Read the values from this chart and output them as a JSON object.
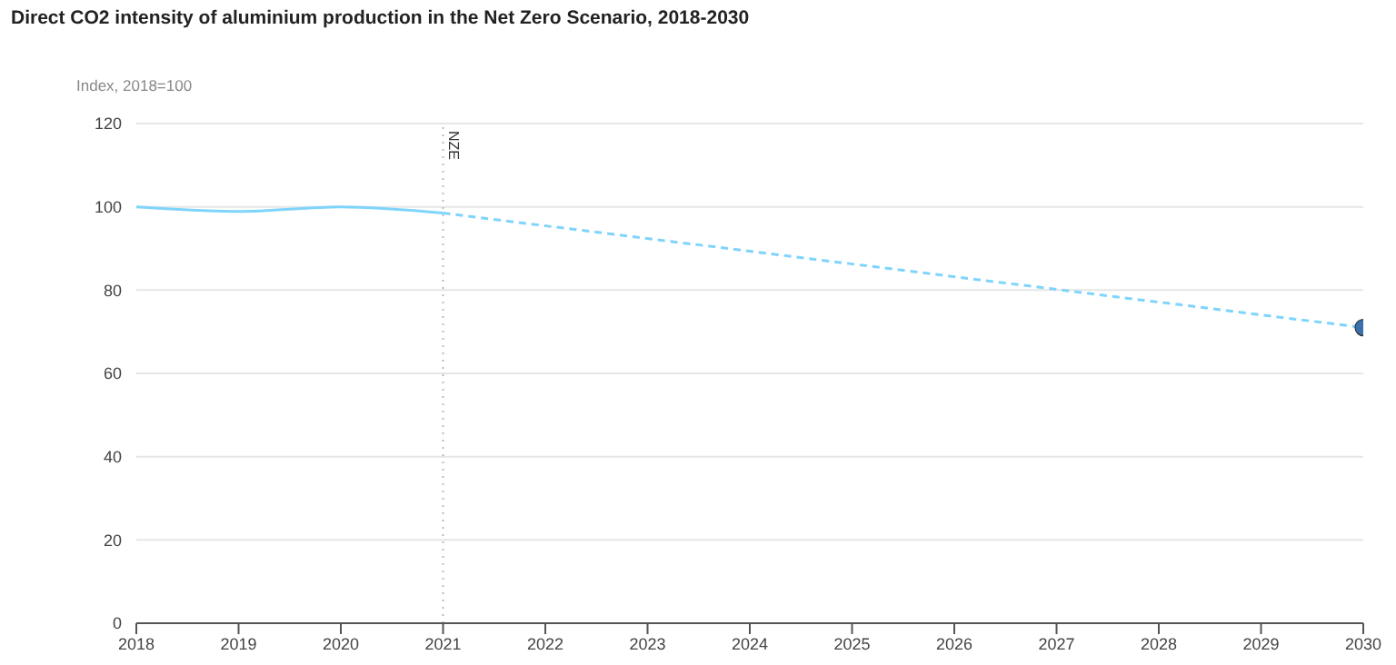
{
  "chart_data": {
    "type": "line",
    "title": "Direct CO2 intensity of aluminium production in the Net Zero Scenario, 2018-2030",
    "ylabel": "Index, 2018=100",
    "series": [
      {
        "x": [
          2018,
          2019,
          2020,
          2021
        ],
        "values": [
          100,
          98.9,
          100,
          98.5
        ],
        "color": "#7fd4fb",
        "line_style": "solid",
        "marker": "none"
      },
      {
        "x": [
          2021,
          2030
        ],
        "values": [
          98.5,
          71
        ],
        "color": "#7fd4fb",
        "line_style": "dashed",
        "marker": "none"
      },
      {
        "type": "scatter",
        "x": [
          2030
        ],
        "values": [
          71
        ],
        "color": "#3a6fb0",
        "marker": "circle"
      }
    ],
    "xlim": [
      2018,
      2030
    ],
    "xticks": [
      2018,
      2019,
      2020,
      2021,
      2022,
      2023,
      2024,
      2025,
      2026,
      2027,
      2028,
      2029,
      2030
    ],
    "ylim": [
      0,
      120
    ],
    "yticks": [
      0,
      20,
      40,
      60,
      80,
      100,
      120
    ],
    "grid": "y",
    "ref_lines": [
      {
        "axis": "x",
        "value": 2021,
        "label": "NZE",
        "color": "#bbbbbb",
        "line_style": "dotted"
      }
    ]
  }
}
